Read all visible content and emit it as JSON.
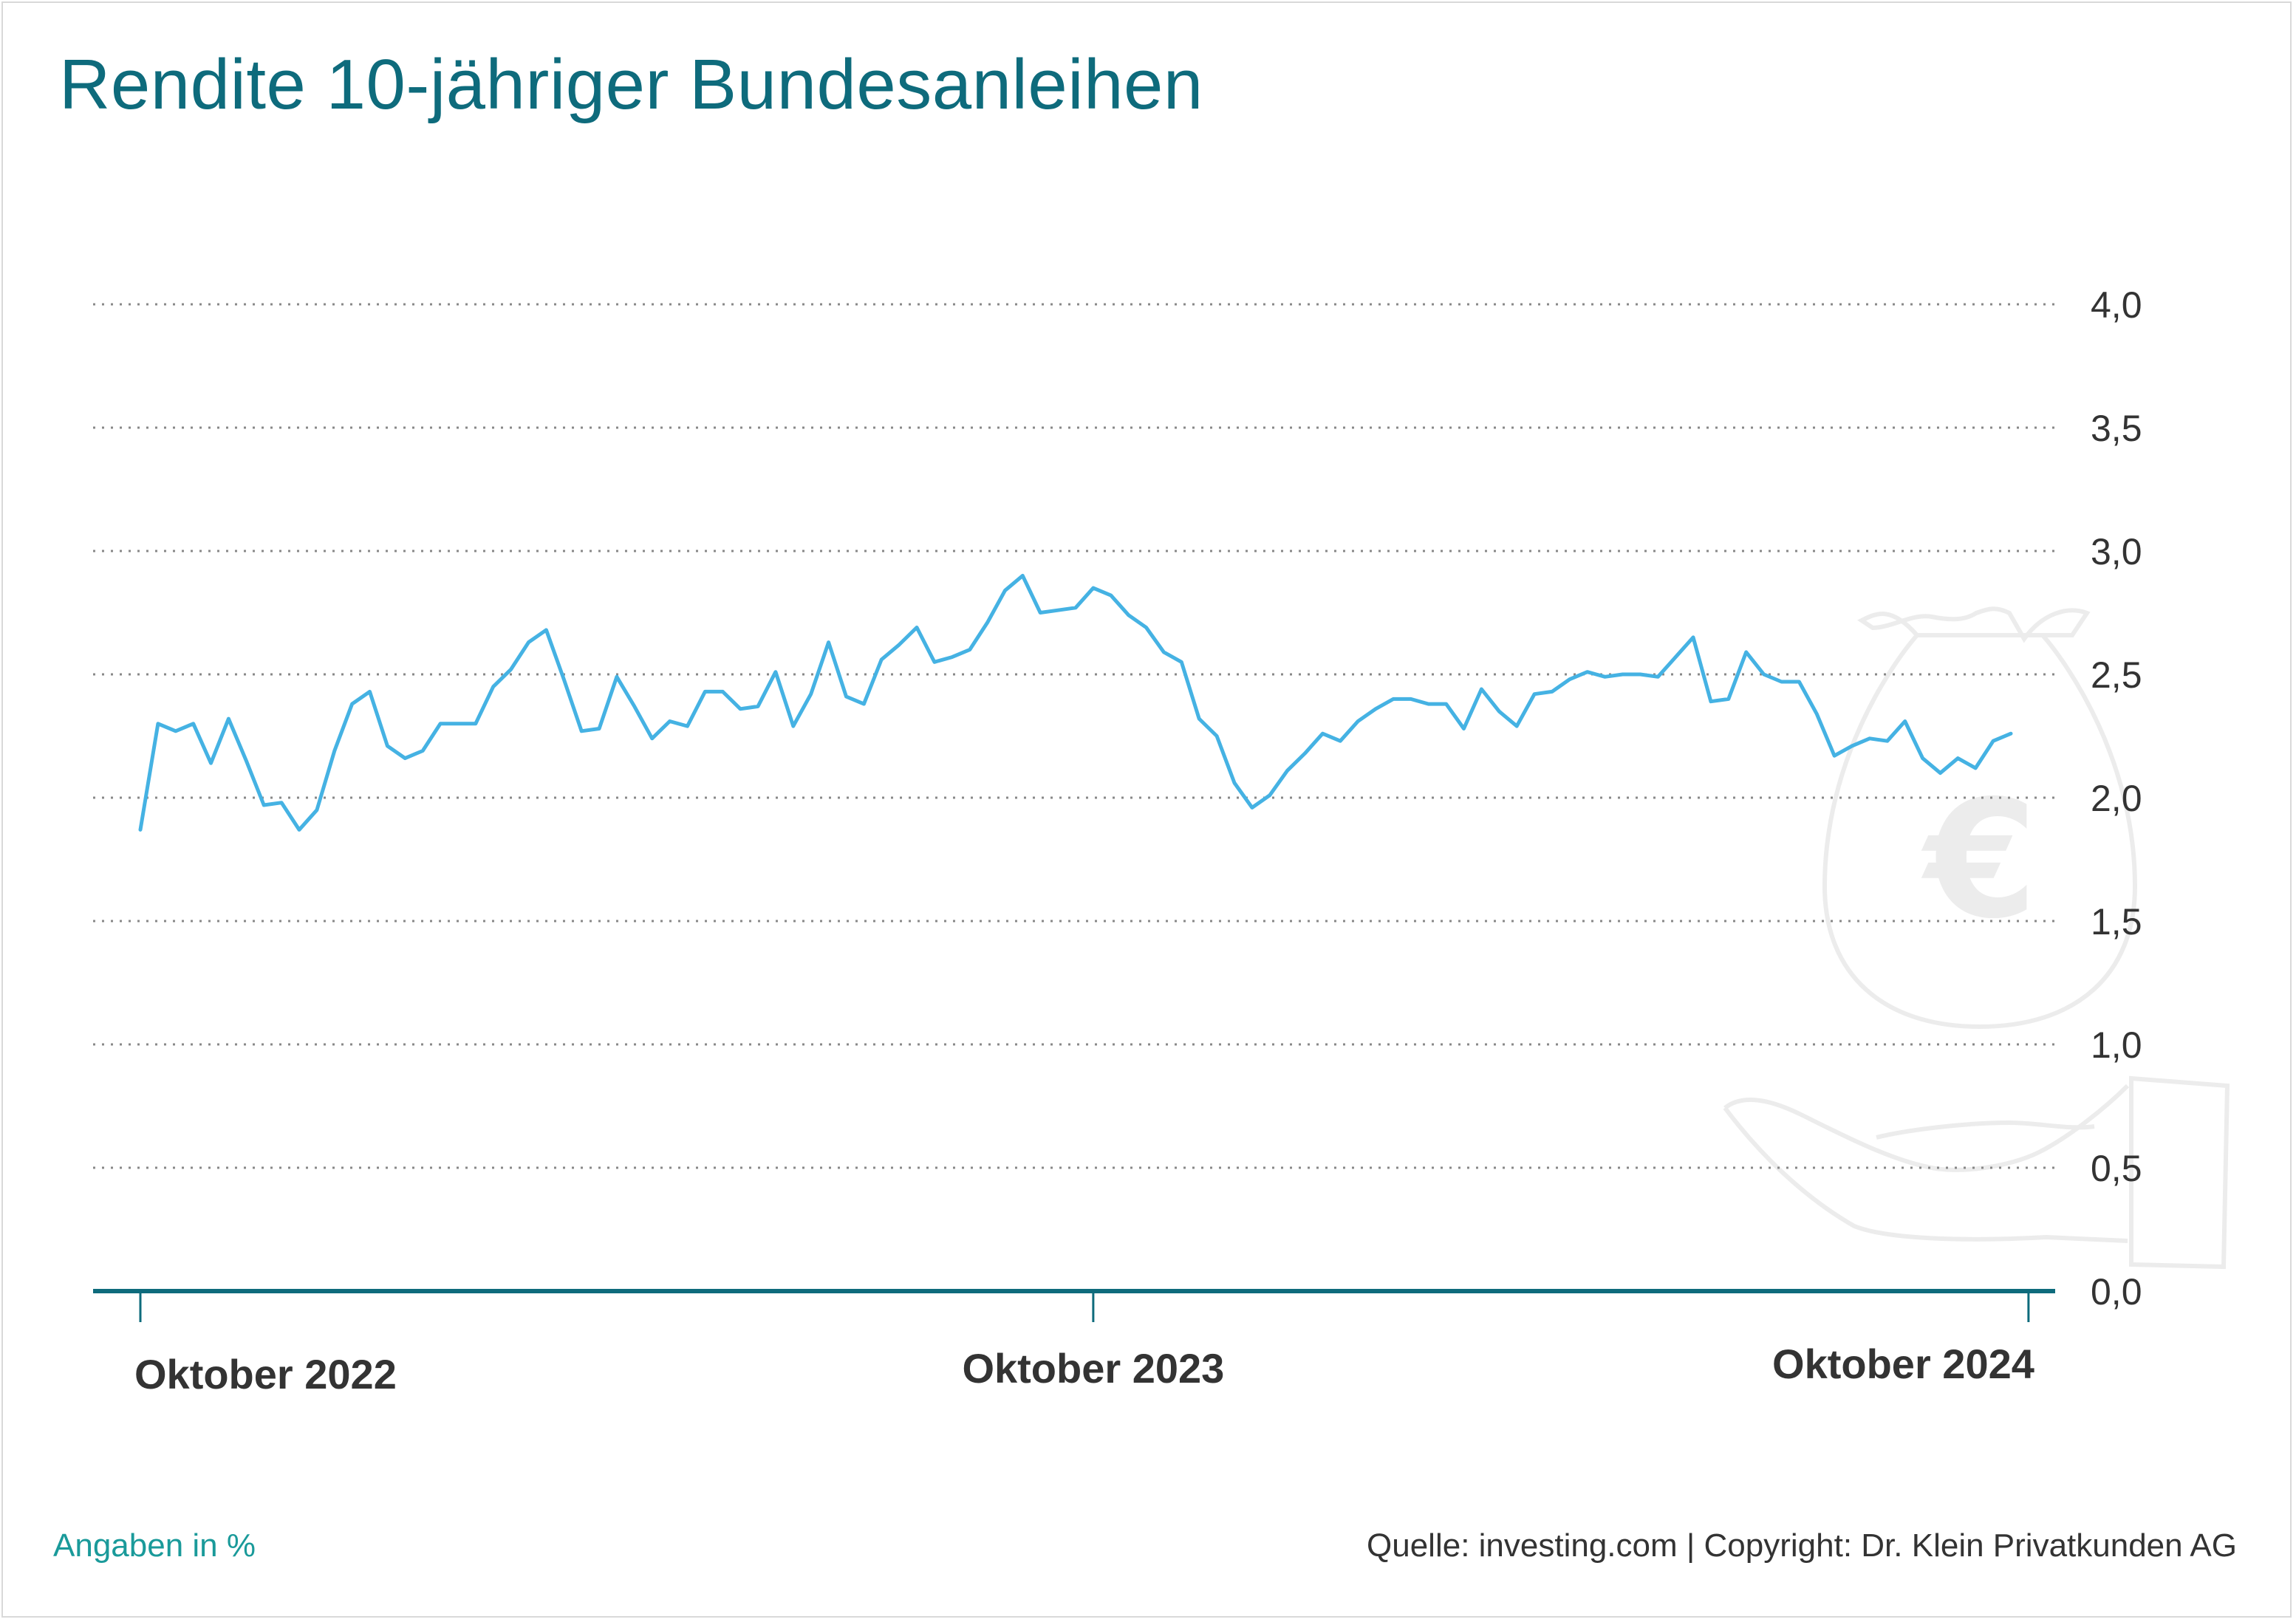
{
  "title": "Rendite 10-jähriger Bundesanleihen",
  "footer": {
    "note": "Angaben in %",
    "source": "Quelle: investing.com | Copyright: Dr. Klein Privatkunden AG"
  },
  "colors": {
    "title": "#0e6b7c",
    "line": "#45b2e3",
    "axis": "#0e6b7c",
    "grid": "#888888",
    "note": "#1a9a9a",
    "watermark": "#ececec"
  },
  "icons": [
    "money-bag-euro-icon",
    "open-hand-icon"
  ],
  "chart_data": {
    "type": "line",
    "title": "Rendite 10-jähriger Bundesanleihen",
    "xlabel": "",
    "ylabel": "",
    "unit": "%",
    "ylim": [
      0,
      4
    ],
    "y_ticks": [
      {
        "value": 0.0,
        "label": "0,0"
      },
      {
        "value": 0.5,
        "label": "0,5"
      },
      {
        "value": 1.0,
        "label": "1,0"
      },
      {
        "value": 1.5,
        "label": "1,5"
      },
      {
        "value": 2.0,
        "label": "2,0"
      },
      {
        "value": 2.5,
        "label": "2,5"
      },
      {
        "value": 3.0,
        "label": "3,0"
      },
      {
        "value": 3.5,
        "label": "3,5"
      },
      {
        "value": 4.0,
        "label": "4,0"
      }
    ],
    "x_ticks": [
      {
        "index": 0,
        "label": "Oktober 2022"
      },
      {
        "index": 54,
        "label": "Oktober 2023"
      },
      {
        "index": 107,
        "label": "Oktober 2024"
      }
    ],
    "grid": "horizontal-dotted",
    "series": [
      {
        "values": [
          1.87,
          2.3,
          2.27,
          2.3,
          2.14,
          2.32,
          2.15,
          1.97,
          1.98,
          1.87,
          1.95,
          2.19,
          2.38,
          2.43,
          2.21,
          2.16,
          2.19,
          2.3,
          2.3,
          2.3,
          2.45,
          2.52,
          2.63,
          2.68,
          2.48,
          2.27,
          2.28,
          2.49,
          2.37,
          2.24,
          2.31,
          2.29,
          2.43,
          2.43,
          2.36,
          2.37,
          2.51,
          2.29,
          2.42,
          2.63,
          2.41,
          2.38,
          2.56,
          2.62,
          2.69,
          2.55,
          2.57,
          2.6,
          2.71,
          2.84,
          2.9,
          2.75,
          2.76,
          2.77,
          2.85,
          2.82,
          2.74,
          2.69,
          2.59,
          2.55,
          2.32,
          2.25,
          2.06,
          1.96,
          2.01,
          2.11,
          2.18,
          2.26,
          2.23,
          2.31,
          2.36,
          2.4,
          2.4,
          2.38,
          2.38,
          2.28,
          2.44,
          2.35,
          2.29,
          2.42,
          2.43,
          2.48,
          2.51,
          2.49,
          2.5,
          2.5,
          2.49,
          2.57,
          2.65,
          2.39,
          2.4,
          2.59,
          2.5,
          2.47,
          2.47,
          2.34,
          2.17,
          2.21,
          2.24,
          2.23,
          2.31,
          2.16,
          2.1,
          2.16,
          2.12,
          2.23,
          2.26
        ]
      }
    ]
  }
}
